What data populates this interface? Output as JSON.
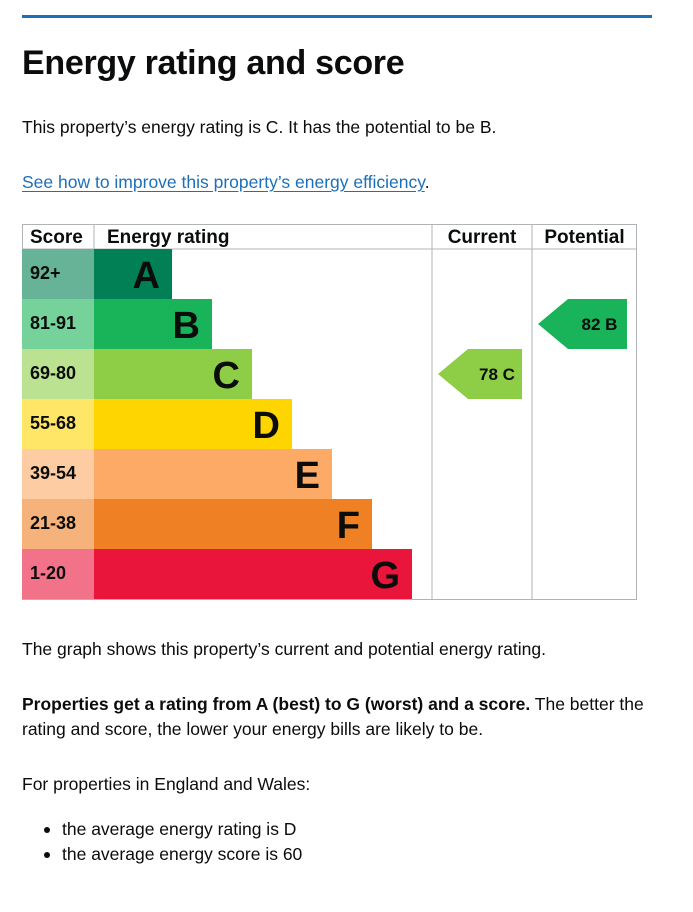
{
  "page": {
    "title": "Energy rating and score",
    "intro": "This property’s energy rating is C. It has the potential to be B.",
    "link_text": "See how to improve this property’s energy efficiency",
    "link_suffix": ".",
    "graph_text": "The graph shows this property’s current and potential energy rating.",
    "bold_text": "Properties get a rating from A (best) to G (worst) and a score.",
    "bold_rest": " The better the rating and score, the lower your energy bills are likely to be.",
    "eng_wales": "For properties in England and Wales:",
    "bullets": [
      "the average energy rating is D",
      "the average energy score is 60"
    ]
  },
  "chart_data": {
    "type": "table",
    "headers": {
      "score": "Score",
      "rating": "Energy rating",
      "current": "Current",
      "potential": "Potential"
    },
    "bands": [
      {
        "score": "92+",
        "letter": "A",
        "color": "#008054",
        "score_color": "#66b398"
      },
      {
        "score": "81-91",
        "letter": "B",
        "color": "#19b459",
        "score_color": "#75d29b"
      },
      {
        "score": "69-80",
        "letter": "C",
        "color": "#8dce46",
        "score_color": "#bbe290"
      },
      {
        "score": "55-68",
        "letter": "D",
        "color": "#ffd500",
        "score_color": "#ffe666"
      },
      {
        "score": "39-54",
        "letter": "E",
        "color": "#fcaa65",
        "score_color": "#fdcca3"
      },
      {
        "score": "21-38",
        "letter": "F",
        "color": "#ef8023",
        "score_color": "#f5b37b"
      },
      {
        "score": "1-20",
        "letter": "G",
        "color": "#e9153b",
        "score_color": "#f27389"
      }
    ],
    "current": {
      "value": 78,
      "letter": "C",
      "color": "#8dce46"
    },
    "potential": {
      "value": 82,
      "letter": "B",
      "color": "#19b459"
    }
  }
}
